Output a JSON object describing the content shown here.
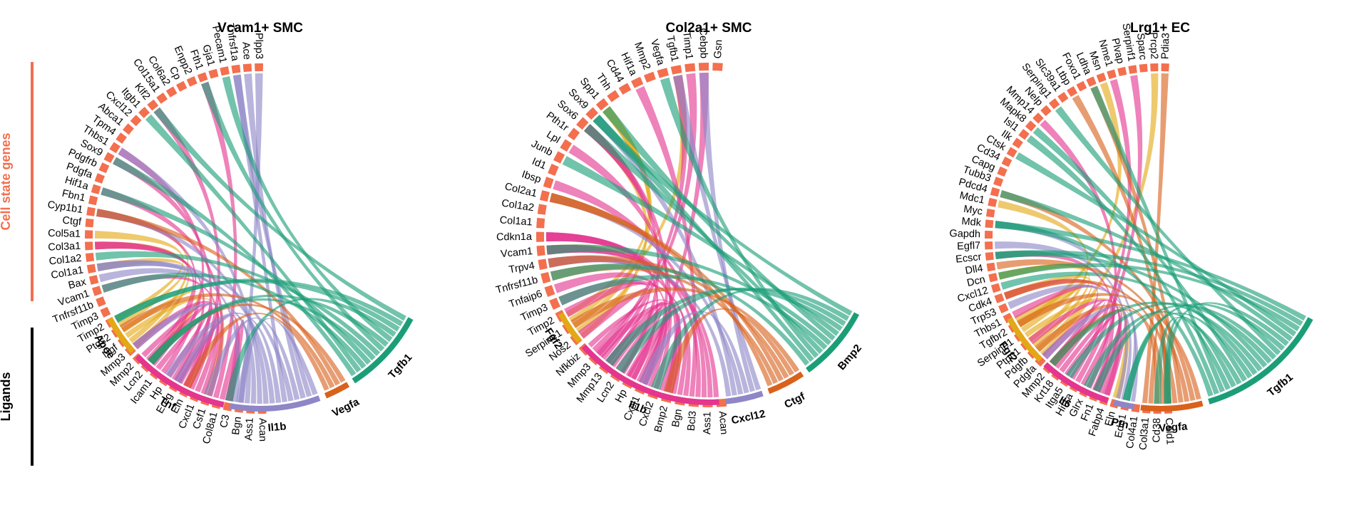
{
  "side_labels": {
    "genes": "Cell state genes",
    "ligands": "Ligands"
  },
  "colors": {
    "gene_arc": "#F36F4E",
    "side_gene": "#F36F4E",
    "side_ligand": "#000000",
    "Apoe": "#E3A815",
    "Fgf2": "#E3A815",
    "Tnf": "#E4358F",
    "Il1b": "#E4358F",
    "Il6": "#E4358F",
    "Vegfa": "#D9611C",
    "Ctgf": "#D9611C",
    "Tgfb1": "#1B9E77",
    "Bmp2": "#1B9E77",
    "Cxcl12": "#8E86C6",
    "Ptn": "#8E86C6",
    "Il1b_vcam": "#8E86C6"
  },
  "panels": [
    {
      "title": "Vcam1+ SMC",
      "genes": [
        "Acan",
        "Ass1",
        "Bgn",
        "C3",
        "Col8a1",
        "Csf1",
        "Cxcl1",
        "Eln",
        "Ereg",
        "Hp",
        "Icam1",
        "Lcn2",
        "Mmp2",
        "Mmp3",
        "Ngf",
        "Ptgs2",
        "Timp2",
        "Timp3",
        "Tnfrsf11b",
        "Vcam1",
        "Bax",
        "Col1a1",
        "Col1a2",
        "Col3a1",
        "Col5a1",
        "Ctgf",
        "Cyp1b1",
        "Fbn1",
        "Hif1a",
        "Pdgfa",
        "Pdgfrb",
        "Sox9",
        "Thbs1",
        "Tpm4",
        "Abca1",
        "Cxcl12",
        "Itgb1",
        "Klf2",
        "Col15a1",
        "Col6a2",
        "Cp",
        "Enpp2",
        "Fth1",
        "Gja1",
        "Pecam1",
        "Tnfrsf1a",
        "Ace",
        "Plpp3"
      ],
      "ligands": [
        {
          "name": "Apoe",
          "color_key": "Apoe",
          "weight": 8
        },
        {
          "name": "Tnf",
          "color_key": "Tnf",
          "weight": 20
        },
        {
          "name": "Il1b",
          "color_key": "Il1b_vcam",
          "weight": 18
        },
        {
          "name": "Vegfa",
          "color_key": "Vegfa",
          "weight": 5
        },
        {
          "name": "Tgfb1",
          "color_key": "Tgfb1",
          "weight": 17
        }
      ]
    },
    {
      "title": "Col2a1+ SMC",
      "genes": [
        "Acan",
        "Ass1",
        "Bcl3",
        "Bgn",
        "Bmp2",
        "Cxcl2",
        "Cxcl1",
        "Hp",
        "Lcn2",
        "Mmp13",
        "Mmp3",
        "Nfkbiz",
        "Nos2",
        "Serpine1",
        "Timp2",
        "Timp3",
        "Tnfaip6",
        "Tnfrsf11b",
        "Trpv4",
        "Vcam1",
        "Cdkn1a",
        "Col1a1",
        "Col1a2",
        "Col2a1",
        "Ibsp",
        "Id1",
        "Junb",
        "Lpl",
        "Pth1r",
        "Sox6",
        "Sox9",
        "Spp1",
        "Thh",
        "Cd44",
        "Hif1a",
        "Mmp2",
        "Vegfa",
        "Tgfb1",
        "Timp1",
        "Cebpb",
        "Gsn"
      ],
      "ligands": [
        {
          "name": "Fgf2",
          "color_key": "Fgf2",
          "weight": 8
        },
        {
          "name": "Il1b",
          "color_key": "Il1b",
          "weight": 36
        },
        {
          "name": "Cxcl12",
          "color_key": "Cxcl12",
          "weight": 9
        },
        {
          "name": "Ctgf",
          "color_key": "Ctgf",
          "weight": 9
        },
        {
          "name": "Bmp2",
          "color_key": "Bmp2",
          "weight": 18
        }
      ]
    },
    {
      "title": "Lrg1+ EC",
      "genes": [
        "Cald1",
        "Cd38",
        "Col3a1",
        "Col4a1",
        "Edn1",
        "Eln",
        "Fabp4",
        "Fn1",
        "Glrx",
        "Hif1a",
        "Itga5",
        "Krt18",
        "Mmp2",
        "Pdgfa",
        "Pdgfb",
        "Ptpn1",
        "Serpine1",
        "Tgfbr2",
        "Thbs1",
        "Trp53",
        "Cdk4",
        "Cxcl12",
        "Dcn",
        "Dll4",
        "Ecscr",
        "Egfl7",
        "Gapdh",
        "Mdk",
        "Myc",
        "Mdc1",
        "Pdcd4",
        "Tubb3",
        "Capg",
        "Cd34",
        "Ctsk",
        "Ilk",
        "Isl1",
        "Mapk8",
        "Mmp14",
        "Nelp",
        "Serping1",
        "Slc39a1",
        "Ltbp",
        "Foxo1",
        "Ldha",
        "Msn",
        "Nme1",
        "Plvap",
        "Serpinf1",
        "Sparc",
        "Prcp2",
        "Pdia3"
      ],
      "ligands": [
        {
          "name": "Fgf2",
          "color_key": "Fgf2",
          "weight": 10
        },
        {
          "name": "Il6",
          "color_key": "Il6",
          "weight": 14
        },
        {
          "name": "Ptn",
          "color_key": "Ptn",
          "weight": 4
        },
        {
          "name": "Vegfa",
          "color_key": "Vegfa",
          "weight": 12
        },
        {
          "name": "Tgfb1",
          "color_key": "Tgfb1",
          "weight": 26
        }
      ]
    }
  ]
}
